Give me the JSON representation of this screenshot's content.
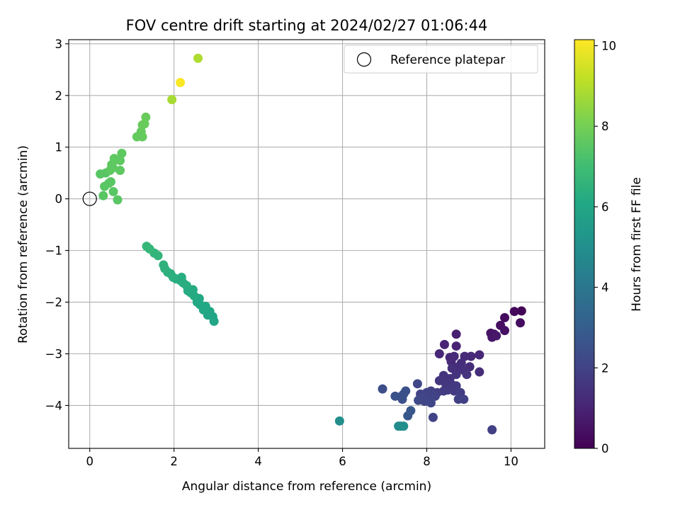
{
  "chart_data": {
    "type": "scatter",
    "title": "FOV centre drift starting at 2024/02/27 01:06:44",
    "xlabel": "Angular distance from reference (arcmin)",
    "ylabel": "Rotation from reference (arcmin)",
    "xlim": [
      -0.5,
      10.8
    ],
    "ylim": [
      -4.83,
      3.08
    ],
    "xticks": [
      0,
      2,
      4,
      6,
      8,
      10
    ],
    "xtick_labels": [
      "0",
      "2",
      "4",
      "6",
      "8",
      "10"
    ],
    "yticks": [
      -4,
      -3,
      -2,
      -1,
      0,
      1,
      2,
      3
    ],
    "ytick_labels": [
      "−4",
      "−3",
      "−2",
      "−1",
      "0",
      "1",
      "2",
      "3"
    ],
    "grid": true,
    "legend": {
      "position": "top-right",
      "entries": [
        "Reference platepar"
      ]
    },
    "reference_point": {
      "x": 0,
      "y": 0
    },
    "colorbar": {
      "label": "Hours from first FF file",
      "range": [
        0,
        10.15
      ],
      "ticks": [
        0,
        2,
        4,
        6,
        8,
        10
      ],
      "tick_labels": [
        "0",
        "2",
        "4",
        "6",
        "8",
        "10"
      ],
      "colormap": "viridis"
    },
    "points": [
      {
        "x": 10.25,
        "y": -2.17,
        "c": 0.1
      },
      {
        "x": 10.08,
        "y": -2.18,
        "c": 0.2
      },
      {
        "x": 9.85,
        "y": -2.3,
        "c": 0.3
      },
      {
        "x": 10.22,
        "y": -2.4,
        "c": 0.35
      },
      {
        "x": 9.75,
        "y": -2.45,
        "c": 0.4
      },
      {
        "x": 9.85,
        "y": -2.55,
        "c": 0.45
      },
      {
        "x": 9.6,
        "y": -2.62,
        "c": 0.5
      },
      {
        "x": 9.52,
        "y": -2.6,
        "c": 0.55
      },
      {
        "x": 9.55,
        "y": -2.68,
        "c": 0.6
      },
      {
        "x": 9.65,
        "y": -2.65,
        "c": 0.65
      },
      {
        "x": 8.7,
        "y": -2.62,
        "c": 0.9
      },
      {
        "x": 8.42,
        "y": -2.82,
        "c": 1.0
      },
      {
        "x": 8.7,
        "y": -2.85,
        "c": 1.0
      },
      {
        "x": 8.3,
        "y": -3.0,
        "c": 1.1
      },
      {
        "x": 8.55,
        "y": -3.07,
        "c": 1.1
      },
      {
        "x": 8.65,
        "y": -3.05,
        "c": 1.2
      },
      {
        "x": 8.9,
        "y": -3.05,
        "c": 1.2
      },
      {
        "x": 9.05,
        "y": -3.05,
        "c": 1.2
      },
      {
        "x": 9.25,
        "y": -3.02,
        "c": 1.1
      },
      {
        "x": 8.58,
        "y": -3.15,
        "c": 1.2
      },
      {
        "x": 8.82,
        "y": -3.18,
        "c": 1.3
      },
      {
        "x": 8.75,
        "y": -3.25,
        "c": 1.3
      },
      {
        "x": 9.02,
        "y": -3.25,
        "c": 1.3
      },
      {
        "x": 8.6,
        "y": -3.28,
        "c": 1.4
      },
      {
        "x": 8.88,
        "y": -3.32,
        "c": 1.4
      },
      {
        "x": 9.25,
        "y": -3.35,
        "c": 1.3
      },
      {
        "x": 8.4,
        "y": -3.42,
        "c": 1.5
      },
      {
        "x": 8.55,
        "y": -3.48,
        "c": 1.5
      },
      {
        "x": 8.7,
        "y": -3.4,
        "c": 1.5
      },
      {
        "x": 8.95,
        "y": -3.4,
        "c": 1.5
      },
      {
        "x": 8.3,
        "y": -3.52,
        "c": 1.6
      },
      {
        "x": 8.45,
        "y": -3.58,
        "c": 1.6
      },
      {
        "x": 8.6,
        "y": -3.6,
        "c": 1.6
      },
      {
        "x": 8.7,
        "y": -3.62,
        "c": 1.7
      },
      {
        "x": 8.5,
        "y": -3.7,
        "c": 1.7
      },
      {
        "x": 8.4,
        "y": -3.72,
        "c": 1.7
      },
      {
        "x": 8.65,
        "y": -3.72,
        "c": 1.7
      },
      {
        "x": 8.8,
        "y": -3.75,
        "c": 1.8
      },
      {
        "x": 8.25,
        "y": -3.75,
        "c": 1.8
      },
      {
        "x": 8.1,
        "y": -3.72,
        "c": 1.9
      },
      {
        "x": 8.0,
        "y": -3.75,
        "c": 2.0
      },
      {
        "x": 7.85,
        "y": -3.78,
        "c": 2.0
      },
      {
        "x": 8.15,
        "y": -3.8,
        "c": 2.0
      },
      {
        "x": 8.05,
        "y": -3.85,
        "c": 2.0
      },
      {
        "x": 7.9,
        "y": -3.85,
        "c": 2.1
      },
      {
        "x": 7.8,
        "y": -3.9,
        "c": 2.2
      },
      {
        "x": 8.2,
        "y": -3.82,
        "c": 2.0
      },
      {
        "x": 7.95,
        "y": -3.92,
        "c": 2.1
      },
      {
        "x": 8.1,
        "y": -3.95,
        "c": 2.1
      },
      {
        "x": 8.75,
        "y": -3.88,
        "c": 1.9
      },
      {
        "x": 8.88,
        "y": -3.88,
        "c": 1.9
      },
      {
        "x": 7.78,
        "y": -3.58,
        "c": 2.1
      },
      {
        "x": 8.15,
        "y": -4.23,
        "c": 2.0
      },
      {
        "x": 9.55,
        "y": -4.47,
        "c": 1.9
      },
      {
        "x": 6.95,
        "y": -3.68,
        "c": 2.4
      },
      {
        "x": 7.25,
        "y": -3.82,
        "c": 2.5
      },
      {
        "x": 7.4,
        "y": -3.82,
        "c": 2.5
      },
      {
        "x": 7.45,
        "y": -3.78,
        "c": 2.5
      },
      {
        "x": 7.5,
        "y": -3.72,
        "c": 2.5
      },
      {
        "x": 7.42,
        "y": -3.88,
        "c": 2.5
      },
      {
        "x": 7.62,
        "y": -4.1,
        "c": 2.7
      },
      {
        "x": 7.55,
        "y": -4.2,
        "c": 2.8
      },
      {
        "x": 7.33,
        "y": -4.4,
        "c": 4.8
      },
      {
        "x": 7.38,
        "y": -4.4,
        "c": 4.9
      },
      {
        "x": 7.45,
        "y": -4.4,
        "c": 5.0
      },
      {
        "x": 5.93,
        "y": -4.3,
        "c": 5.0
      },
      {
        "x": 2.95,
        "y": -2.37,
        "c": 6.0
      },
      {
        "x": 2.92,
        "y": -2.28,
        "c": 6.0
      },
      {
        "x": 2.8,
        "y": -2.25,
        "c": 6.0
      },
      {
        "x": 2.85,
        "y": -2.18,
        "c": 6.0
      },
      {
        "x": 2.7,
        "y": -2.15,
        "c": 6.1
      },
      {
        "x": 2.75,
        "y": -2.08,
        "c": 6.1
      },
      {
        "x": 2.62,
        "y": -2.05,
        "c": 6.1
      },
      {
        "x": 2.55,
        "y": -2.0,
        "c": 6.1
      },
      {
        "x": 2.6,
        "y": -1.93,
        "c": 6.1
      },
      {
        "x": 2.48,
        "y": -1.88,
        "c": 6.2
      },
      {
        "x": 2.4,
        "y": -1.82,
        "c": 6.2
      },
      {
        "x": 2.33,
        "y": -1.78,
        "c": 6.2
      },
      {
        "x": 2.45,
        "y": -1.76,
        "c": 6.2
      },
      {
        "x": 2.3,
        "y": -1.68,
        "c": 6.3
      },
      {
        "x": 2.22,
        "y": -1.63,
        "c": 6.3
      },
      {
        "x": 2.15,
        "y": -1.58,
        "c": 6.3
      },
      {
        "x": 2.18,
        "y": -1.52,
        "c": 6.3
      },
      {
        "x": 2.05,
        "y": -1.55,
        "c": 6.3
      },
      {
        "x": 1.98,
        "y": -1.52,
        "c": 6.4
      },
      {
        "x": 1.92,
        "y": -1.45,
        "c": 6.4
      },
      {
        "x": 1.85,
        "y": -1.42,
        "c": 6.4
      },
      {
        "x": 1.78,
        "y": -1.35,
        "c": 6.5
      },
      {
        "x": 1.75,
        "y": -1.28,
        "c": 6.5
      },
      {
        "x": 1.62,
        "y": -1.1,
        "c": 6.6
      },
      {
        "x": 1.53,
        "y": -1.05,
        "c": 6.6
      },
      {
        "x": 1.42,
        "y": -0.97,
        "c": 6.7
      },
      {
        "x": 1.35,
        "y": -0.92,
        "c": 6.7
      },
      {
        "x": 0.32,
        "y": 0.06,
        "c": 7.5
      },
      {
        "x": 0.66,
        "y": -0.02,
        "c": 7.5
      },
      {
        "x": 0.56,
        "y": 0.14,
        "c": 7.5
      },
      {
        "x": 0.35,
        "y": 0.24,
        "c": 7.5
      },
      {
        "x": 0.45,
        "y": 0.3,
        "c": 7.5
      },
      {
        "x": 0.5,
        "y": 0.33,
        "c": 7.5
      },
      {
        "x": 0.25,
        "y": 0.48,
        "c": 7.5
      },
      {
        "x": 0.38,
        "y": 0.5,
        "c": 7.5
      },
      {
        "x": 0.48,
        "y": 0.55,
        "c": 7.6
      },
      {
        "x": 0.55,
        "y": 0.6,
        "c": 7.6
      },
      {
        "x": 0.52,
        "y": 0.66,
        "c": 7.6
      },
      {
        "x": 0.72,
        "y": 0.55,
        "c": 7.6
      },
      {
        "x": 0.6,
        "y": 0.75,
        "c": 7.6
      },
      {
        "x": 0.72,
        "y": 0.74,
        "c": 7.6
      },
      {
        "x": 0.58,
        "y": 0.78,
        "c": 7.6
      },
      {
        "x": 0.76,
        "y": 0.88,
        "c": 7.6
      },
      {
        "x": 1.12,
        "y": 1.2,
        "c": 7.7
      },
      {
        "x": 1.25,
        "y": 1.2,
        "c": 7.7
      },
      {
        "x": 1.22,
        "y": 1.3,
        "c": 7.7
      },
      {
        "x": 1.25,
        "y": 1.43,
        "c": 7.8
      },
      {
        "x": 1.3,
        "y": 1.45,
        "c": 7.8
      },
      {
        "x": 1.33,
        "y": 1.58,
        "c": 7.8
      },
      {
        "x": 1.95,
        "y": 1.92,
        "c": 8.8
      },
      {
        "x": 2.15,
        "y": 2.25,
        "c": 10.1
      },
      {
        "x": 2.57,
        "y": 2.72,
        "c": 8.9
      }
    ]
  }
}
